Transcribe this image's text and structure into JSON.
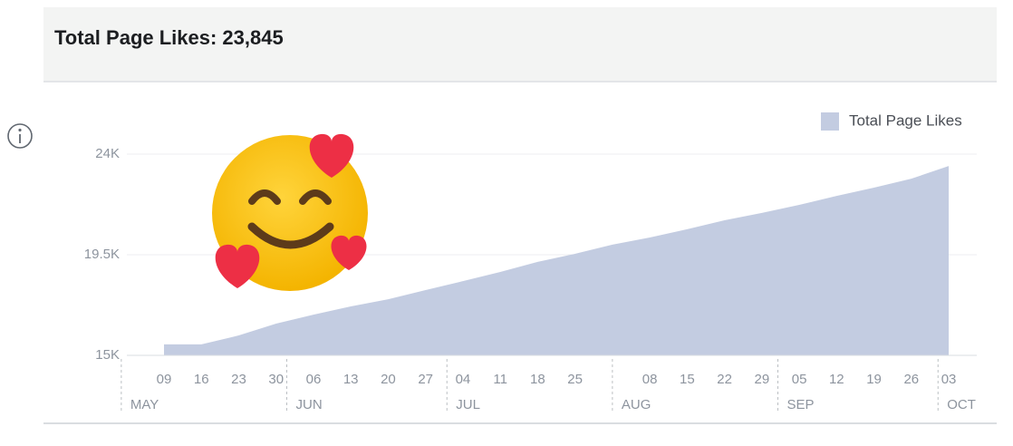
{
  "chart_data": {
    "type": "area",
    "title": "Total Page Likes: 23,845",
    "legend_label": "Total Page Likes",
    "color": "#c3cce1",
    "categories": [
      "09",
      "16",
      "23",
      "30",
      "06",
      "13",
      "20",
      "27",
      "04",
      "11",
      "18",
      "25",
      null,
      "08",
      "15",
      "22",
      "29",
      "05",
      "12",
      "19",
      "26",
      "03"
    ],
    "values": [
      15490,
      15490,
      15890,
      16420,
      16820,
      17190,
      17510,
      17920,
      18320,
      18730,
      19180,
      19540,
      19950,
      20270,
      20640,
      21040,
      21370,
      21730,
      22130,
      22500,
      22900,
      23470
    ],
    "months": [
      "MAY",
      "JUN",
      "JUL",
      "AUG",
      "SEP",
      "OCT"
    ],
    "ylim": [
      15000,
      24000
    ],
    "yticks": [
      {
        "value": 15000,
        "label": "15K"
      },
      {
        "value": 19500,
        "label": "19.5K"
      },
      {
        "value": 24000,
        "label": "24K"
      }
    ],
    "grid": true
  }
}
